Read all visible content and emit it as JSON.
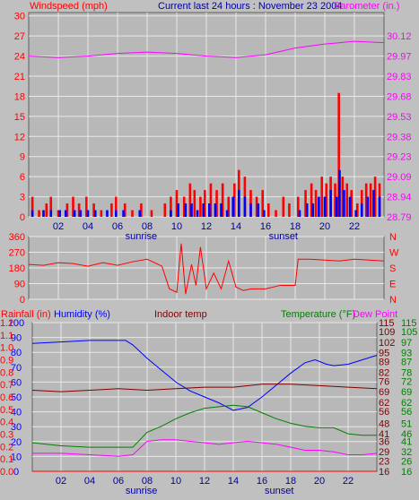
{
  "header": {
    "left_label": "Windspeed (mph)",
    "title": "Current last 24 hours : November 23 2004",
    "right_label": "Barometer (in.)"
  },
  "bottom_header": {
    "rainfall_label": "Rainfall (in)",
    "humidity_label": "Humidity (%)",
    "indoor_label": "Indoor temp",
    "temperature_label": "Temperature (°F)",
    "dewpoint_label": "Dew Point"
  },
  "hour_labels": [
    "02",
    "04",
    "06",
    "08",
    "10",
    "12",
    "14",
    "16",
    "18",
    "20",
    "22"
  ],
  "markers": {
    "sunrise": "sunrise",
    "sunset": "sunset"
  },
  "colors": {
    "background": "#c0c0c0",
    "plot_bg": "#b8b8b8",
    "grid": "#e8e8e8",
    "red": "#ff0000",
    "blue": "#0000ff",
    "green": "#008000",
    "magenta": "#ff00ff",
    "maroon": "#800000",
    "tick_text": "#0000a0"
  },
  "chart_data": [
    {
      "type": "bar",
      "name": "wind",
      "x_unit": "hour",
      "xlim": [
        0,
        24
      ],
      "left_axis": {
        "title": "Windspeed (mph)",
        "ticks": [
          0,
          3,
          6,
          9,
          12,
          15,
          18,
          21,
          24,
          27,
          30
        ],
        "ylim": [
          0,
          30.5
        ]
      },
      "right_axis": {
        "title": "Barometer (in.)",
        "ticks": [
          "28.79",
          "28.94",
          "29.09",
          "29.23",
          "29.38",
          "29.53",
          "29.68",
          "29.83",
          "29.97",
          "30.12"
        ],
        "ylim": [
          28.79,
          30.2
        ]
      },
      "series": [
        {
          "kind": "gust_bars",
          "color": "red",
          "points": [
            [
              0.25,
              3
            ],
            [
              0.7,
              1
            ],
            [
              1.2,
              2
            ],
            [
              1.5,
              3
            ],
            [
              2.0,
              1
            ],
            [
              2.6,
              2
            ],
            [
              3.0,
              3
            ],
            [
              3.4,
              2
            ],
            [
              3.9,
              3
            ],
            [
              4.4,
              2
            ],
            [
              4.9,
              1
            ],
            [
              5.6,
              2
            ],
            [
              5.9,
              3
            ],
            [
              6.5,
              2
            ],
            [
              7.0,
              1
            ],
            [
              7.6,
              2
            ],
            [
              8.3,
              1
            ],
            [
              9.2,
              2
            ],
            [
              9.6,
              3
            ],
            [
              10.0,
              4
            ],
            [
              10.5,
              3
            ],
            [
              10.9,
              5
            ],
            [
              11.2,
              4
            ],
            [
              11.6,
              3
            ],
            [
              11.9,
              4
            ],
            [
              12.3,
              5
            ],
            [
              12.7,
              4
            ],
            [
              13.1,
              5
            ],
            [
              13.5,
              3
            ],
            [
              13.9,
              5
            ],
            [
              14.2,
              7
            ],
            [
              14.6,
              6
            ],
            [
              15.0,
              4
            ],
            [
              15.4,
              3
            ],
            [
              15.8,
              4
            ],
            [
              16.2,
              2
            ],
            [
              16.7,
              1
            ],
            [
              17.2,
              3
            ],
            [
              17.6,
              2
            ],
            [
              18.2,
              3
            ],
            [
              18.7,
              4
            ],
            [
              19.1,
              5
            ],
            [
              19.4,
              4
            ],
            [
              19.8,
              6
            ],
            [
              20.1,
              5
            ],
            [
              20.4,
              6
            ],
            [
              20.7,
              5
            ],
            [
              20.95,
              18.5
            ],
            [
              21.2,
              6
            ],
            [
              21.5,
              5
            ],
            [
              21.8,
              4
            ],
            [
              22.2,
              2
            ],
            [
              22.5,
              4
            ],
            [
              22.8,
              5
            ],
            [
              23.1,
              5
            ],
            [
              23.4,
              6
            ],
            [
              23.7,
              5
            ]
          ]
        },
        {
          "kind": "average_bars",
          "color": "blue",
          "points": [
            [
              0.25,
              1
            ],
            [
              1.0,
              1
            ],
            [
              1.5,
              1
            ],
            [
              2.1,
              1
            ],
            [
              2.5,
              1
            ],
            [
              3.1,
              1
            ],
            [
              3.5,
              1
            ],
            [
              4.0,
              1
            ],
            [
              4.5,
              1
            ],
            [
              5.3,
              1
            ],
            [
              5.9,
              1
            ],
            [
              6.4,
              1
            ],
            [
              7.5,
              1
            ],
            [
              9.6,
              1
            ],
            [
              10.1,
              2
            ],
            [
              10.6,
              2
            ],
            [
              11.0,
              2
            ],
            [
              11.4,
              1
            ],
            [
              11.8,
              2
            ],
            [
              12.2,
              2
            ],
            [
              12.6,
              2
            ],
            [
              13.0,
              2
            ],
            [
              13.4,
              1
            ],
            [
              13.8,
              3
            ],
            [
              14.2,
              4
            ],
            [
              14.6,
              3
            ],
            [
              15.0,
              2
            ],
            [
              15.5,
              2
            ],
            [
              15.9,
              1
            ],
            [
              18.3,
              1
            ],
            [
              18.8,
              2
            ],
            [
              19.2,
              2
            ],
            [
              19.6,
              3
            ],
            [
              20.0,
              3
            ],
            [
              20.4,
              4
            ],
            [
              20.8,
              3
            ],
            [
              21.0,
              7
            ],
            [
              21.3,
              4
            ],
            [
              21.7,
              3
            ],
            [
              22.1,
              1
            ],
            [
              22.5,
              2
            ],
            [
              22.9,
              3
            ],
            [
              23.3,
              4
            ],
            [
              23.7,
              3
            ]
          ]
        },
        {
          "kind": "barometer_line",
          "color": "magenta",
          "unit": "in",
          "points": [
            [
              0,
              29.97
            ],
            [
              2,
              29.96
            ],
            [
              4,
              29.97
            ],
            [
              6,
              29.99
            ],
            [
              8,
              30.0
            ],
            [
              10,
              29.99
            ],
            [
              12,
              29.97
            ],
            [
              14,
              29.96
            ],
            [
              16,
              29.98
            ],
            [
              18,
              30.03
            ],
            [
              20,
              30.06
            ],
            [
              22,
              30.08
            ],
            [
              24,
              30.07
            ]
          ]
        }
      ]
    },
    {
      "type": "line",
      "name": "wind_direction",
      "x_unit": "hour",
      "left_axis": {
        "ticks": [
          0,
          90,
          180,
          270,
          360
        ],
        "ylim": [
          0,
          360
        ]
      },
      "right_axis": {
        "ticks": [
          "N",
          "E",
          "S",
          "W",
          "N"
        ]
      },
      "series": [
        {
          "color": "red",
          "unit": "degrees",
          "points": [
            [
              0,
              200
            ],
            [
              1,
              195
            ],
            [
              2,
              210
            ],
            [
              3,
              205
            ],
            [
              4,
              190
            ],
            [
              5,
              210
            ],
            [
              6,
              195
            ],
            [
              7,
              215
            ],
            [
              8,
              230
            ],
            [
              9,
              190
            ],
            [
              9.5,
              60
            ],
            [
              10,
              40
            ],
            [
              10.3,
              320
            ],
            [
              10.6,
              30
            ],
            [
              11,
              200
            ],
            [
              11.3,
              80
            ],
            [
              11.6,
              300
            ],
            [
              12,
              60
            ],
            [
              12.5,
              150
            ],
            [
              13,
              60
            ],
            [
              13.5,
              220
            ],
            [
              14,
              70
            ],
            [
              14.5,
              50
            ],
            [
              15,
              60
            ],
            [
              16,
              60
            ],
            [
              17,
              80
            ],
            [
              18,
              80
            ],
            [
              18.2,
              230
            ],
            [
              19,
              230
            ],
            [
              20,
              225
            ],
            [
              21,
              220
            ],
            [
              22,
              230
            ],
            [
              23,
              225
            ],
            [
              24,
              220
            ]
          ]
        }
      ]
    },
    {
      "type": "line",
      "name": "humidity_temperature",
      "x_unit": "hour",
      "left_axis_humidity": {
        "title": "Humidity (%)",
        "ticks": [
          0,
          10,
          20,
          30,
          40,
          50,
          60,
          70,
          80,
          90,
          100
        ],
        "ylim": [
          0,
          100
        ]
      },
      "left_axis_rainfall": {
        "title": "Rainfall (in)",
        "ticks": [
          "0.0",
          "0.1",
          "0.2",
          "0.3",
          "0.4",
          "0.5",
          "0.6",
          "0.7",
          "0.8",
          "0.9",
          "1.0",
          "1.1",
          "1.2"
        ],
        "ylim": [
          0,
          1.2
        ]
      },
      "right_axis_temperature": {
        "title": "Temperature (°F)",
        "ticks": [
          16,
          23,
          29,
          36,
          41,
          48,
          56,
          62,
          69,
          76,
          82,
          89,
          95,
          102,
          109,
          115
        ],
        "ylim": [
          16,
          115
        ]
      },
      "right_axis_dewpoint": {
        "title": "Dew Point",
        "ticks": [
          16,
          26,
          32,
          41,
          46,
          51,
          56,
          62,
          69,
          72,
          78,
          87,
          93,
          97,
          105,
          115
        ]
      },
      "series": [
        {
          "name": "Humidity (%)",
          "color": "blue",
          "unit": "%",
          "points": [
            [
              0,
              86
            ],
            [
              2,
              87
            ],
            [
              4,
              88
            ],
            [
              6,
              88
            ],
            [
              6.5,
              88
            ],
            [
              7,
              85
            ],
            [
              8,
              76
            ],
            [
              9,
              68
            ],
            [
              10,
              60
            ],
            [
              11,
              54
            ],
            [
              12,
              50
            ],
            [
              13,
              46
            ],
            [
              14,
              41
            ],
            [
              15,
              43
            ],
            [
              16,
              50
            ],
            [
              17,
              58
            ],
            [
              18,
              66
            ],
            [
              19,
              73
            ],
            [
              19.7,
              75
            ],
            [
              20.5,
              72
            ],
            [
              21,
              71
            ],
            [
              22,
              72
            ],
            [
              23,
              75
            ],
            [
              24,
              78
            ]
          ]
        },
        {
          "name": "Indoor temp",
          "color": "maroon",
          "unit": "°F",
          "points": [
            [
              0,
              70
            ],
            [
              2,
              69
            ],
            [
              4,
              70
            ],
            [
              6,
              71
            ],
            [
              8,
              70
            ],
            [
              10,
              71
            ],
            [
              12,
              72
            ],
            [
              14,
              72
            ],
            [
              16,
              74
            ],
            [
              18,
              74
            ],
            [
              20,
              73
            ],
            [
              22,
              72
            ],
            [
              24,
              71
            ]
          ]
        },
        {
          "name": "Temperature (°F)",
          "color": "green",
          "unit": "°F",
          "points": [
            [
              0,
              35
            ],
            [
              2,
              33
            ],
            [
              4,
              32
            ],
            [
              6,
              32
            ],
            [
              7,
              32
            ],
            [
              8,
              42
            ],
            [
              9,
              46
            ],
            [
              10,
              51
            ],
            [
              11,
              55
            ],
            [
              12,
              58
            ],
            [
              13,
              59
            ],
            [
              14,
              60
            ],
            [
              15,
              59
            ],
            [
              16,
              55
            ],
            [
              17,
              51
            ],
            [
              18,
              48
            ],
            [
              19,
              46
            ],
            [
              20,
              45
            ],
            [
              21,
              45
            ],
            [
              22,
              41
            ],
            [
              23,
              40
            ],
            [
              24,
              40
            ]
          ]
        },
        {
          "name": "Dew Point",
          "color": "magenta",
          "unit": "°F",
          "points": [
            [
              0,
              28
            ],
            [
              2,
              28
            ],
            [
              4,
              27
            ],
            [
              6,
              26
            ],
            [
              7,
              27
            ],
            [
              8,
              36
            ],
            [
              9,
              37
            ],
            [
              10,
              37
            ],
            [
              11,
              36
            ],
            [
              12,
              35
            ],
            [
              13,
              34
            ],
            [
              14,
              35
            ],
            [
              15,
              36
            ],
            [
              16,
              35
            ],
            [
              17,
              34
            ],
            [
              18,
              32
            ],
            [
              19,
              30
            ],
            [
              20,
              30
            ],
            [
              21,
              29
            ],
            [
              22,
              27
            ],
            [
              23,
              27
            ],
            [
              24,
              28
            ]
          ]
        },
        {
          "name": "Rainfall (in)",
          "color": "red",
          "unit": "in",
          "points": [
            [
              0,
              0
            ],
            [
              24,
              0
            ]
          ]
        }
      ]
    }
  ]
}
